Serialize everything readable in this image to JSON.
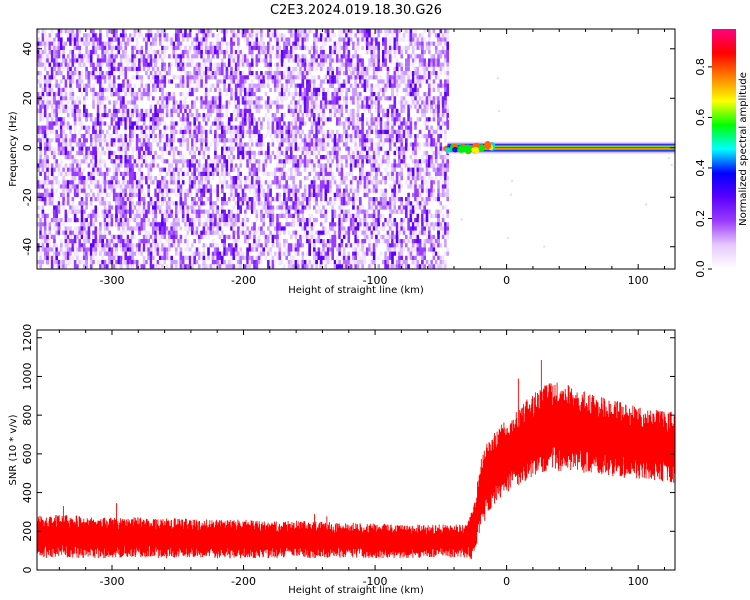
{
  "title": "C2E3.2024.019.18.30.G26",
  "chart_data": [
    {
      "type": "heatmap",
      "xlabel": "Height of straight line (km)",
      "ylabel": "Frequency (Hz)",
      "xlim": [
        -357,
        128
      ],
      "ylim": [
        -49,
        48
      ],
      "x_ticks": [
        -300,
        -200,
        -100,
        0,
        100
      ],
      "y_ticks": [
        -40,
        -20,
        0,
        20,
        40
      ],
      "colorbar": {
        "label": "Normalized spectral amplitude",
        "range": [
          0,
          0.95
        ],
        "ticks": [
          0.0,
          0.2,
          0.4,
          0.6,
          0.8
        ],
        "colormap": [
          "#ffffff",
          "#e6c8ff",
          "#9b3cff",
          "#5a00ff",
          "#0000ff",
          "#00ffff",
          "#00ff00",
          "#ffff00",
          "#ff8000",
          "#ff0000",
          "#ff0080"
        ]
      },
      "regions": [
        {
          "label": "noise",
          "x_range": [
            -357,
            -45
          ],
          "y_range": [
            -49,
            48
          ],
          "amplitude_range": [
            0.0,
            0.15
          ]
        },
        {
          "label": "carrier",
          "x_range": [
            -45,
            128
          ],
          "frequency": 0,
          "peak_amplitude": 0.95
        }
      ]
    },
    {
      "type": "line",
      "xlabel": "Height of straight line (km)",
      "ylabel": "SNR (10 * v/v)",
      "xlim": [
        -357,
        128
      ],
      "ylim": [
        0,
        1240
      ],
      "x_ticks": [
        -300,
        -200,
        -100,
        0,
        100
      ],
      "y_ticks": [
        0,
        200,
        400,
        600,
        800,
        1000,
        1200
      ],
      "series": [
        {
          "color": "#ff0000",
          "x": [
            -357,
            -340,
            -320,
            -300,
            -280,
            -260,
            -240,
            -220,
            -200,
            -180,
            -160,
            -140,
            -120,
            -100,
            -80,
            -60,
            -40,
            -30,
            -25,
            -20,
            -15,
            -10,
            -5,
            0,
            10,
            20,
            30,
            40,
            50,
            60,
            70,
            80,
            90,
            100,
            110,
            120,
            128
          ],
          "y": [
            170,
            175,
            170,
            165,
            170,
            165,
            165,
            160,
            160,
            155,
            160,
            155,
            155,
            150,
            150,
            150,
            150,
            150,
            200,
            380,
            470,
            520,
            560,
            580,
            640,
            700,
            740,
            740,
            730,
            710,
            700,
            680,
            670,
            660,
            650,
            640,
            630
          ],
          "spread": [
            110,
            110,
            110,
            105,
            105,
            105,
            100,
            100,
            100,
            95,
            95,
            95,
            90,
            90,
            90,
            85,
            85,
            85,
            150,
            180,
            190,
            190,
            190,
            190,
            200,
            220,
            230,
            230,
            220,
            210,
            200,
            200,
            195,
            190,
            185,
            185,
            185
          ]
        }
      ]
    }
  ],
  "colors": {
    "signal": "#ff0000",
    "noise_dark": "#5a00ff",
    "noise_light": "#e0c4ff"
  }
}
